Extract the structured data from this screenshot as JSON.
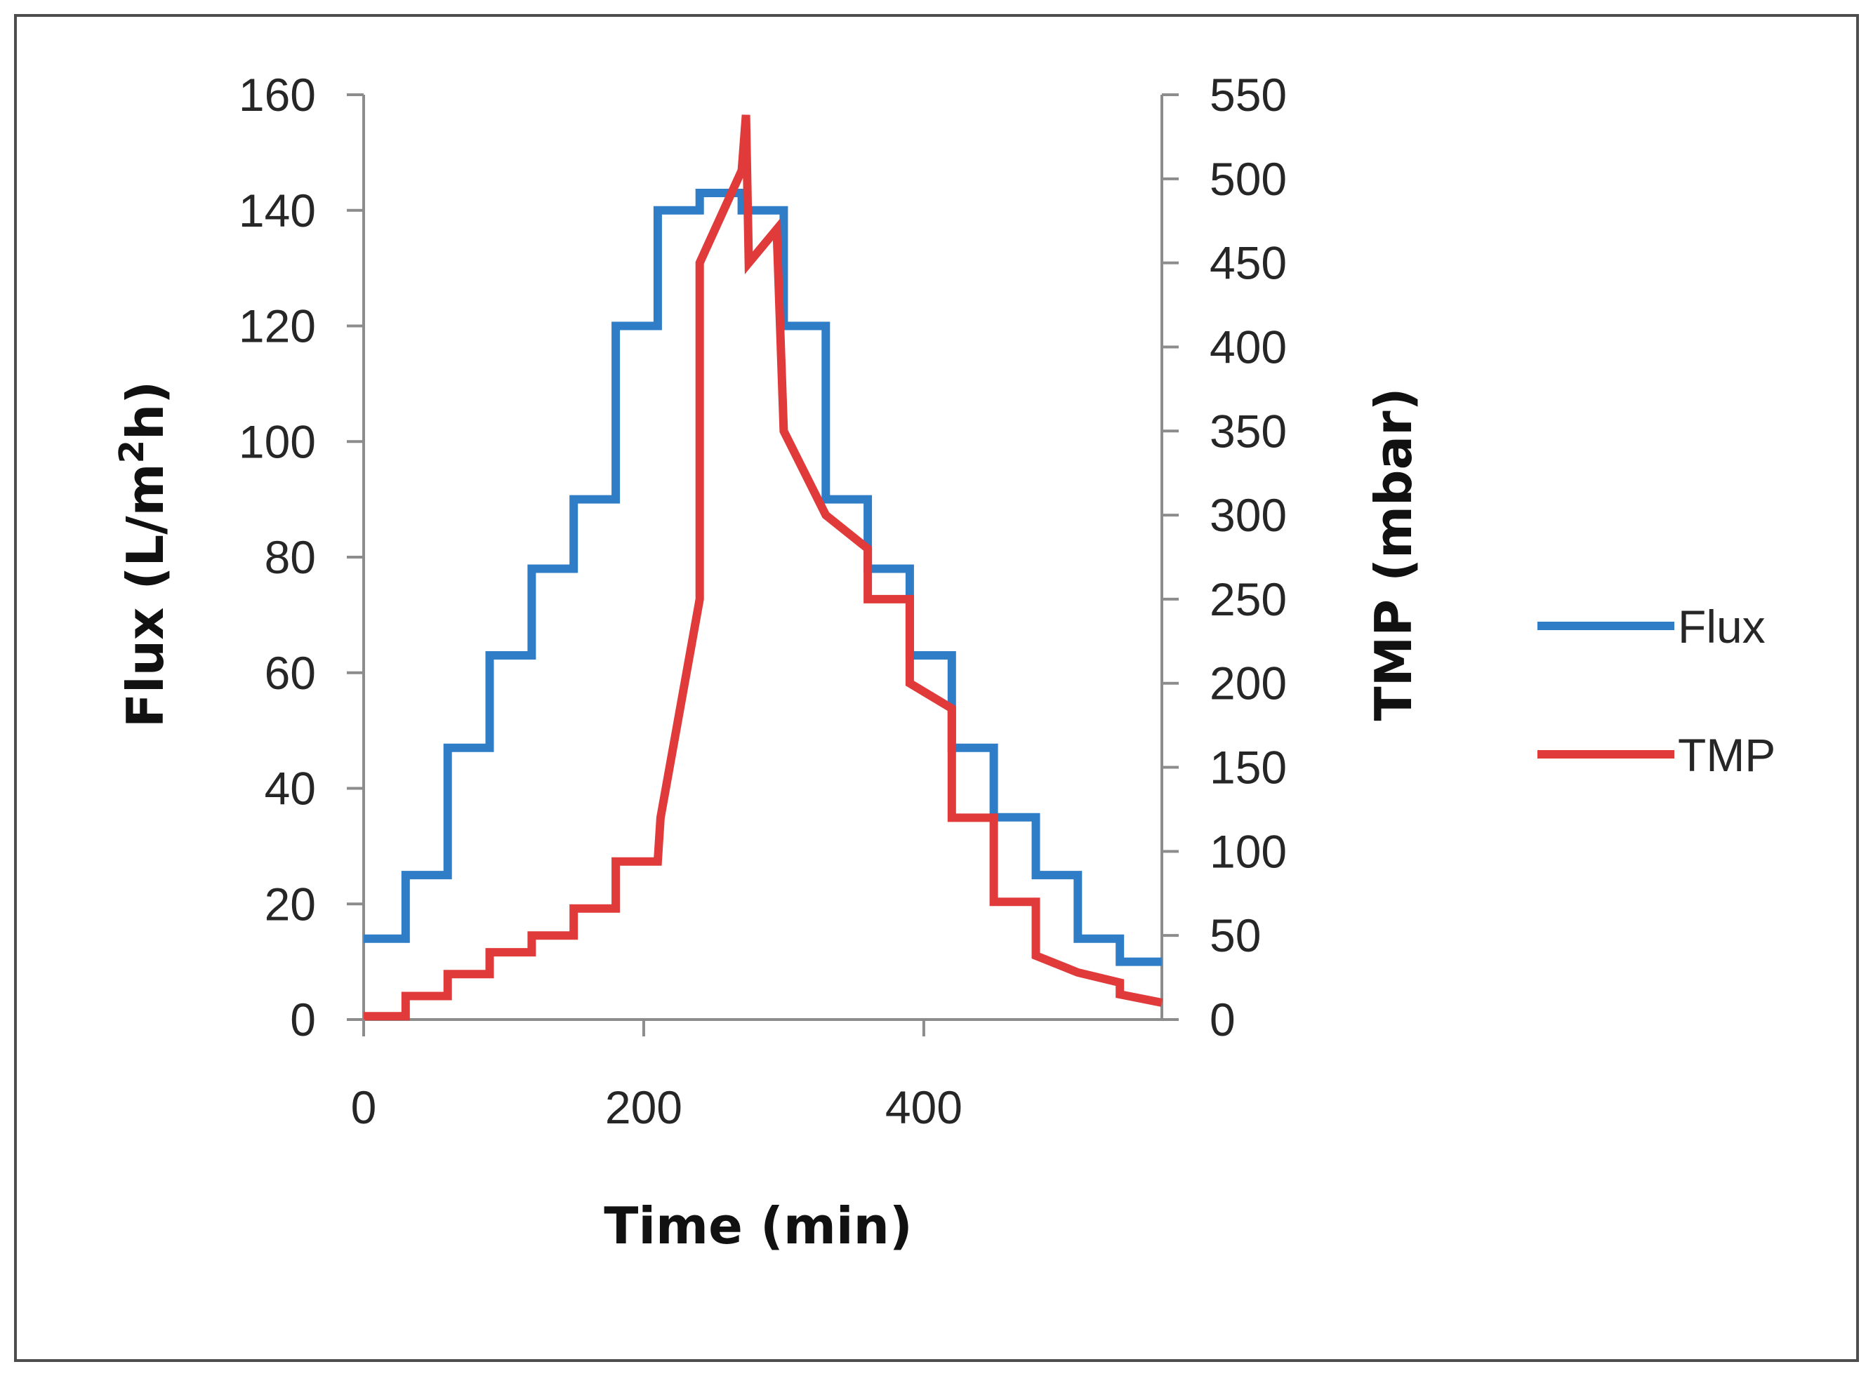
{
  "chart_data": {
    "type": "line",
    "title": "",
    "xlabel": "Time (min)",
    "ylabel_left": {
      "prefix": "Flux (L/m",
      "sup": "2",
      "suffix": "h)"
    },
    "ylabel_right": "TMP (mbar)",
    "xlim": [
      0,
      570
    ],
    "ylim_left": [
      0,
      160
    ],
    "ylim_right": [
      0,
      550
    ],
    "x_ticks": [
      0,
      200,
      400
    ],
    "y_ticks_left": [
      0,
      20,
      40,
      60,
      80,
      100,
      120,
      140,
      160
    ],
    "y_ticks_right": [
      0,
      50,
      100,
      150,
      200,
      250,
      300,
      350,
      400,
      450,
      500,
      550
    ],
    "grid": false,
    "legend_position": "right",
    "series": [
      {
        "name": "Flux",
        "axis": "left",
        "color": "#2f7cc7",
        "x": [
          0,
          30,
          30,
          60,
          60,
          90,
          90,
          120,
          120,
          150,
          150,
          180,
          180,
          210,
          210,
          240,
          240,
          270,
          270,
          300,
          300,
          330,
          330,
          360,
          360,
          390,
          390,
          420,
          420,
          450,
          450,
          480,
          480,
          510,
          510,
          540,
          540,
          570
        ],
        "y": [
          14,
          14,
          25,
          25,
          47,
          47,
          63,
          63,
          78,
          78,
          90,
          90,
          120,
          120,
          140,
          140,
          143,
          143,
          140,
          140,
          120,
          120,
          90,
          90,
          78,
          78,
          63,
          63,
          47,
          47,
          35,
          35,
          25,
          25,
          14,
          14,
          10,
          10
        ]
      },
      {
        "name": "TMP",
        "axis": "right",
        "color": "#e03a3a",
        "x": [
          0,
          30,
          30,
          60,
          60,
          90,
          90,
          120,
          120,
          150,
          150,
          180,
          180,
          210,
          212,
          240,
          240,
          270,
          273,
          275,
          295,
          300,
          300,
          330,
          330,
          360,
          360,
          390,
          390,
          420,
          420,
          450,
          450,
          480,
          480,
          510,
          510,
          540,
          540,
          570
        ],
        "y": [
          2,
          2,
          14,
          14,
          27,
          27,
          40,
          40,
          50,
          50,
          66,
          66,
          94,
          94,
          120,
          250,
          450,
          505,
          538,
          450,
          470,
          350,
          350,
          300,
          300,
          280,
          250,
          250,
          200,
          185,
          120,
          120,
          70,
          70,
          38,
          28,
          28,
          22,
          15,
          10
        ]
      }
    ]
  }
}
